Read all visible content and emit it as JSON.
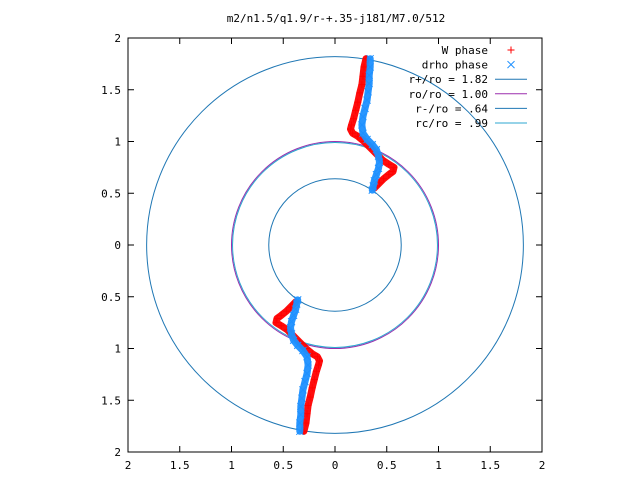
{
  "chart_data": {
    "type": "scatter",
    "title": "m2/n1.5/q1.9/r-+.35-j181/M7.0/512",
    "xlabel": "",
    "ylabel": "",
    "xlim": [
      -2,
      2
    ],
    "ylim": [
      -2,
      2
    ],
    "x_tick_values": [
      -2,
      -1.5,
      -1,
      -0.5,
      0,
      0.5,
      1,
      1.5,
      2
    ],
    "x_tick_labels": [
      "2",
      "1.5",
      "1",
      "0.5",
      "0",
      "0.5",
      "1",
      "1.5",
      "2"
    ],
    "y_tick_values": [
      2,
      1.5,
      1,
      0.5,
      0,
      -0.5,
      -1,
      -1.5,
      -2
    ],
    "y_tick_labels": [
      "2",
      "1.5",
      "1",
      "0.5",
      "0",
      "0.5",
      "1",
      "1.5",
      "2"
    ],
    "grid": false,
    "legend_position": "top-right",
    "aspect": "equal",
    "series": [
      {
        "name": "W phase",
        "kind": "points",
        "marker": "+",
        "color": "#ff0000",
        "points": [
          [
            0.3,
            1.8
          ],
          [
            0.28,
            1.72
          ],
          [
            0.27,
            1.63
          ],
          [
            0.26,
            1.55
          ],
          [
            0.24,
            1.47
          ],
          [
            0.22,
            1.38
          ],
          [
            0.2,
            1.3
          ],
          [
            0.18,
            1.22
          ],
          [
            0.16,
            1.16
          ],
          [
            0.15,
            1.12
          ],
          [
            0.17,
            1.08
          ],
          [
            0.22,
            1.05
          ],
          [
            0.28,
            1.0
          ],
          [
            0.34,
            0.94
          ],
          [
            0.4,
            0.88
          ],
          [
            0.46,
            0.82
          ],
          [
            0.52,
            0.78
          ],
          [
            0.57,
            0.75
          ],
          [
            0.56,
            0.71
          ],
          [
            0.52,
            0.68
          ],
          [
            0.47,
            0.64
          ],
          [
            0.43,
            0.6
          ],
          [
            0.4,
            0.57
          ],
          [
            0.38,
            0.55
          ]
        ]
      },
      {
        "name": "drho phase",
        "kind": "points",
        "marker": "x",
        "color": "#1e90ff",
        "points": [
          [
            0.34,
            1.8
          ],
          [
            0.34,
            1.72
          ],
          [
            0.33,
            1.64
          ],
          [
            0.33,
            1.56
          ],
          [
            0.32,
            1.48
          ],
          [
            0.31,
            1.4
          ],
          [
            0.29,
            1.32
          ],
          [
            0.27,
            1.24
          ],
          [
            0.26,
            1.16
          ],
          [
            0.27,
            1.08
          ],
          [
            0.31,
            1.02
          ],
          [
            0.36,
            0.97
          ],
          [
            0.4,
            0.92
          ],
          [
            0.42,
            0.86
          ],
          [
            0.43,
            0.8
          ],
          [
            0.42,
            0.74
          ],
          [
            0.4,
            0.68
          ],
          [
            0.38,
            0.62
          ],
          [
            0.37,
            0.57
          ],
          [
            0.36,
            0.53
          ]
        ]
      },
      {
        "name": "r+/ro = 1.82",
        "kind": "circle",
        "radius": 1.82,
        "color": "#1f77b4"
      },
      {
        "name": "ro/ro = 1.00",
        "kind": "circle",
        "radius": 1.0,
        "color": "#9b2fae"
      },
      {
        "name": "r-/ro = .64",
        "kind": "circle",
        "radius": 0.64,
        "color": "#1f77b4"
      },
      {
        "name": "rc/ro = .99",
        "kind": "circle",
        "radius": 0.99,
        "color": "#2ca7d0"
      }
    ]
  }
}
